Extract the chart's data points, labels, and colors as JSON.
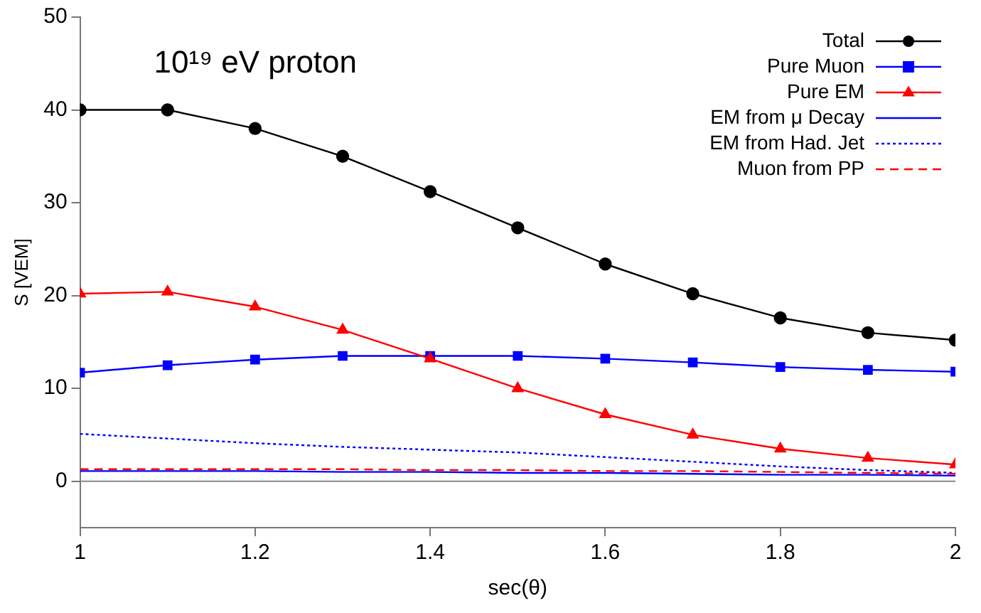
{
  "chart_data": {
    "type": "line",
    "xlabel": "sec(θ)",
    "ylabel": "S [VEM]",
    "annotations": [
      "10¹⁹ eV proton"
    ],
    "x": [
      1,
      1.1,
      1.2,
      1.3,
      1.4,
      1.5,
      1.6,
      1.7,
      1.8,
      1.9,
      2
    ],
    "xlim": [
      1,
      2
    ],
    "xticks": [
      1,
      1.2,
      1.4,
      1.6,
      1.8,
      2
    ],
    "ylim": [
      -5,
      50
    ],
    "yticks": [
      0,
      10,
      20,
      30,
      40,
      50
    ],
    "grid": false,
    "legend": "top right",
    "ref_lines": [
      {
        "axis": "y",
        "value": 0,
        "color": "#888888"
      }
    ],
    "series": [
      {
        "name": "Total",
        "color": "#000000",
        "marker": "circle",
        "line_style": "solid",
        "values": [
          40,
          40,
          38,
          35,
          31.2,
          27.3,
          23.4,
          20.2,
          17.6,
          16,
          15.2
        ]
      },
      {
        "name": "Pure Muon",
        "color": "#0000ff",
        "marker": "square",
        "line_style": "solid",
        "values": [
          11.7,
          12.5,
          13.1,
          13.5,
          13.5,
          13.5,
          13.2,
          12.8,
          12.3,
          12,
          11.8
        ]
      },
      {
        "name": "Pure EM",
        "color": "#ff0000",
        "marker": "triangle",
        "line_style": "solid",
        "values": [
          20.2,
          20.4,
          18.8,
          16.3,
          13.2,
          10,
          7.2,
          5,
          3.5,
          2.5,
          1.8
        ]
      },
      {
        "name": "EM from μ Decay",
        "color": "#0000ff",
        "marker": "none",
        "line_style": "solid",
        "values": [
          1.1,
          1.1,
          1.1,
          1,
          1,
          0.9,
          0.9,
          0.8,
          0.7,
          0.7,
          0.6
        ]
      },
      {
        "name": "EM from Had. Jet",
        "color": "#0000ff",
        "marker": "none",
        "line_style": "dotted",
        "values": [
          5.1,
          4.6,
          4.1,
          3.7,
          3.4,
          3.1,
          2.6,
          2.1,
          1.6,
          1.2,
          0.9
        ]
      },
      {
        "name": "Muon from PP",
        "color": "#ff0000",
        "marker": "none",
        "line_style": "dashed",
        "values": [
          1.3,
          1.3,
          1.3,
          1.3,
          1.2,
          1.2,
          1.1,
          1.1,
          1,
          0.9,
          0.8
        ]
      }
    ]
  }
}
